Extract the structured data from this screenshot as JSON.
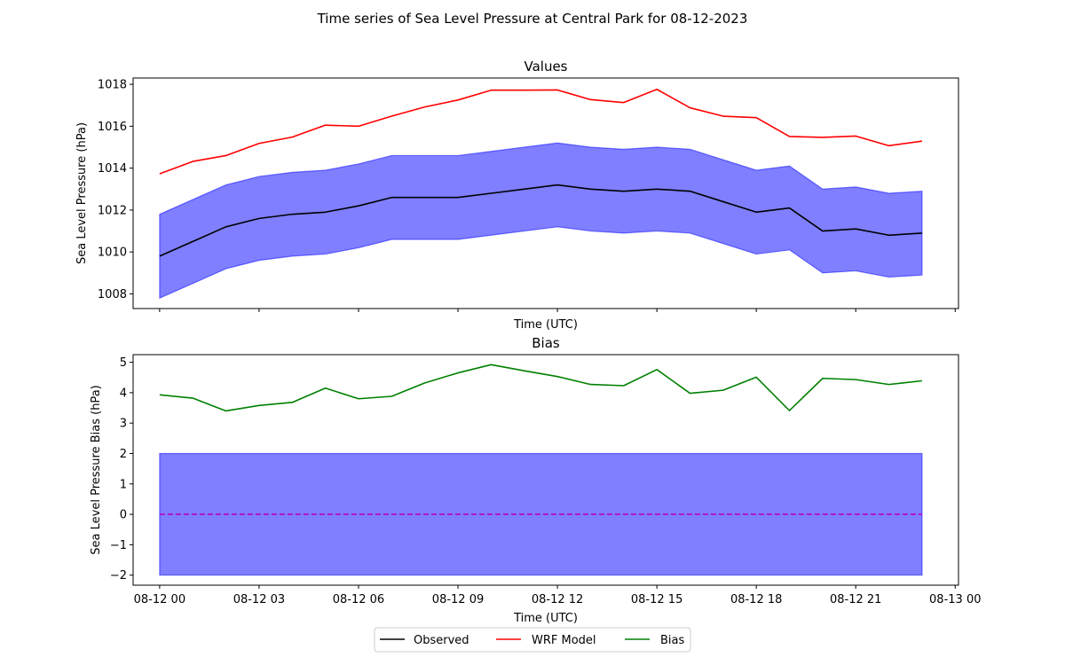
{
  "figure": {
    "title": "Time series of Sea Level Pressure at Central Park for 08-12-2023"
  },
  "colors": {
    "observed": "#000000",
    "wrf": "#ff0000",
    "bias": "#008000",
    "band_fill": "#0000ff",
    "zero_line": "#bf00bf"
  },
  "legend": {
    "placement": "bottom-center",
    "entries": [
      "Observed",
      "WRF Model",
      "Bias"
    ]
  },
  "chart_data": [
    {
      "type": "line",
      "title": "Values",
      "xlabel": "Time (UTC)",
      "ylabel": "Sea Level Pressure (hPa)",
      "x_hours": [
        0,
        1,
        2,
        3,
        4,
        5,
        6,
        7,
        8,
        9,
        10,
        11,
        12,
        13,
        14,
        15,
        16,
        17,
        18,
        19,
        20,
        21,
        22,
        23
      ],
      "xlim_hours": [
        -0.8,
        24.1
      ],
      "ylim": [
        1007.3,
        1018.3
      ],
      "yticks": [
        1008,
        1010,
        1012,
        1014,
        1016,
        1018
      ],
      "xtick_hours": [
        0,
        3,
        6,
        9,
        12,
        15,
        18,
        21,
        24
      ],
      "xtick_labels": [],
      "grid": false,
      "series": [
        {
          "name": "Observed",
          "key": "observed",
          "values": [
            1009.8,
            1010.5,
            1011.2,
            1011.6,
            1011.8,
            1011.9,
            1012.2,
            1012.6,
            1012.6,
            1012.6,
            1012.8,
            1013.0,
            1013.2,
            1013.0,
            1012.9,
            1013.0,
            1012.9,
            1012.4,
            1011.9,
            1012.1,
            1011.0,
            1011.1,
            1010.8,
            1010.9
          ]
        },
        {
          "name": "WRF Model",
          "key": "wrf",
          "values": [
            1013.73,
            1014.32,
            1014.6,
            1015.18,
            1015.48,
            1016.05,
            1016.0,
            1016.48,
            1016.92,
            1017.25,
            1017.72,
            1017.72,
            1017.73,
            1017.27,
            1017.13,
            1017.76,
            1016.88,
            1016.48,
            1016.41,
            1015.51,
            1015.47,
            1015.53,
            1015.07,
            1015.29
          ]
        }
      ],
      "band": {
        "key": "observed",
        "lower": [
          1007.8,
          1008.5,
          1009.2,
          1009.6,
          1009.8,
          1009.9,
          1010.2,
          1010.6,
          1010.6,
          1010.6,
          1010.8,
          1011.0,
          1011.2,
          1011.0,
          1010.9,
          1011.0,
          1010.9,
          1010.4,
          1009.9,
          1010.1,
          1009.0,
          1009.1,
          1008.8,
          1008.9
        ],
        "upper": [
          1011.8,
          1012.5,
          1013.2,
          1013.6,
          1013.8,
          1013.9,
          1014.2,
          1014.6,
          1014.6,
          1014.6,
          1014.8,
          1015.0,
          1015.2,
          1015.0,
          1014.9,
          1015.0,
          1014.9,
          1014.4,
          1013.9,
          1014.1,
          1013.0,
          1013.1,
          1012.8,
          1012.9
        ]
      }
    },
    {
      "type": "line",
      "title": "Bias",
      "xlabel": "Time (UTC)",
      "ylabel": "Sea Level Pressure Bias (hPa)",
      "x_hours": [
        0,
        1,
        2,
        3,
        4,
        5,
        6,
        7,
        8,
        9,
        10,
        11,
        12,
        13,
        14,
        15,
        16,
        17,
        18,
        19,
        20,
        21,
        22,
        23
      ],
      "xlim_hours": [
        -0.8,
        24.1
      ],
      "ylim": [
        -2.33,
        5.25
      ],
      "yticks": [
        -2,
        -1,
        0,
        1,
        2,
        3,
        4,
        5
      ],
      "xtick_hours": [
        0,
        3,
        6,
        9,
        12,
        15,
        18,
        21,
        24
      ],
      "xtick_labels": [
        "08-12 00",
        "08-12 03",
        "08-12 06",
        "08-12 09",
        "08-12 12",
        "08-12 15",
        "08-12 18",
        "08-12 21",
        "08-13 00"
      ],
      "grid": false,
      "series": [
        {
          "name": "Bias",
          "key": "bias",
          "values": [
            3.93,
            3.82,
            3.4,
            3.58,
            3.68,
            4.15,
            3.8,
            3.88,
            4.32,
            4.65,
            4.92,
            4.72,
            4.53,
            4.27,
            4.23,
            4.76,
            3.98,
            4.08,
            4.51,
            3.41,
            4.47,
            4.43,
            4.27,
            4.39
          ]
        }
      ],
      "band": {
        "key": "band_fill",
        "lower": -2,
        "upper": 2
      },
      "reference_line": {
        "y": 0,
        "style": "dashed",
        "key": "zero_line"
      }
    }
  ]
}
